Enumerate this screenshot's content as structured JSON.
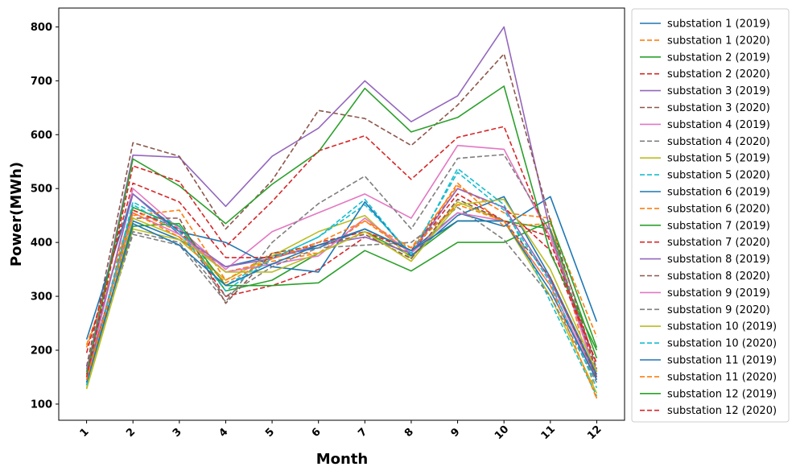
{
  "chart_data": {
    "type": "line",
    "title": "",
    "xlabel": "Month",
    "ylabel": "Power(MWh)",
    "x": [
      1,
      2,
      3,
      4,
      5,
      6,
      7,
      8,
      9,
      10,
      11,
      12
    ],
    "xticklabels": [
      "1",
      "2",
      "3",
      "4",
      "5",
      "6",
      "7",
      "8",
      "9",
      "10",
      "11",
      "12"
    ],
    "yticks": [
      100,
      200,
      300,
      400,
      500,
      600,
      700,
      800
    ],
    "xlim": [
      0.4,
      12.6
    ],
    "ylim": [
      70,
      835
    ],
    "grid": false,
    "legend_position": "outside-right",
    "series": [
      {
        "name": "substation 1 (2019)",
        "color": "#1f77b4",
        "dash": "solid",
        "values": [
          135,
          440,
          405,
          355,
          375,
          390,
          425,
          385,
          455,
          430,
          485,
          253
        ]
      },
      {
        "name": "substation 1 (2020)",
        "color": "#ff7f0e",
        "dash": "dashed",
        "values": [
          205,
          460,
          420,
          345,
          365,
          380,
          420,
          390,
          505,
          455,
          445,
          110
        ]
      },
      {
        "name": "substation 2 (2019)",
        "color": "#2ca02c",
        "dash": "solid",
        "values": [
          140,
          465,
          430,
          310,
          330,
          380,
          420,
          375,
          440,
          440,
          425,
          185
        ]
      },
      {
        "name": "substation 2 (2020)",
        "color": "#d62728",
        "dash": "dashed",
        "values": [
          150,
          460,
          425,
          300,
          320,
          350,
          410,
          380,
          490,
          440,
          410,
          160
        ]
      },
      {
        "name": "substation 3 (2019)",
        "color": "#9467bd",
        "dash": "solid",
        "values": [
          160,
          562,
          558,
          467,
          560,
          612,
          700,
          624,
          672,
          800,
          420,
          150
        ]
      },
      {
        "name": "substation 3 (2020)",
        "color": "#8c564b",
        "dash": "dashed",
        "values": [
          170,
          585,
          560,
          425,
          515,
          645,
          630,
          580,
          655,
          750,
          440,
          165
        ]
      },
      {
        "name": "substation 4 (2019)",
        "color": "#e377c2",
        "dash": "solid",
        "values": [
          150,
          500,
          425,
          350,
          420,
          455,
          490,
          445,
          580,
          573,
          410,
          150
        ]
      },
      {
        "name": "substation 4 (2020)",
        "color": "#7f7f7f",
        "dash": "dashed",
        "values": [
          145,
          415,
          395,
          290,
          400,
          472,
          523,
          425,
          556,
          563,
          420,
          165
        ]
      },
      {
        "name": "substation 5 (2019)",
        "color": "#bcbd22",
        "dash": "solid",
        "values": [
          128,
          425,
          405,
          330,
          375,
          420,
          450,
          370,
          475,
          440,
          300,
          120
        ]
      },
      {
        "name": "substation 5 (2020)",
        "color": "#17becf",
        "dash": "dashed",
        "values": [
          140,
          475,
          430,
          320,
          370,
          410,
          480,
          375,
          537,
          470,
          290,
          115
        ]
      },
      {
        "name": "substation 6 (2019)",
        "color": "#1f77b4",
        "dash": "solid",
        "values": [
          220,
          490,
          420,
          400,
          355,
          345,
          475,
          375,
          450,
          485,
          335,
          155
        ]
      },
      {
        "name": "substation 6 (2020)",
        "color": "#ff7f0e",
        "dash": "dashed",
        "values": [
          210,
          450,
          460,
          330,
          380,
          380,
          440,
          380,
          510,
          430,
          435,
          225
        ]
      },
      {
        "name": "substation 7 (2019)",
        "color": "#2ca02c",
        "dash": "solid",
        "values": [
          145,
          430,
          435,
          320,
          320,
          325,
          385,
          347,
          400,
          400,
          440,
          205
        ]
      },
      {
        "name": "substation 7 (2020)",
        "color": "#d62728",
        "dash": "dashed",
        "values": [
          195,
          510,
          475,
          372,
          372,
          400,
          420,
          385,
          500,
          465,
          385,
          175
        ]
      },
      {
        "name": "substation 8 (2019)",
        "color": "#9467bd",
        "dash": "solid",
        "values": [
          165,
          490,
          415,
          355,
          370,
          395,
          410,
          380,
          500,
          465,
          330,
          150
        ]
      },
      {
        "name": "substation 8 (2020)",
        "color": "#8c564b",
        "dash": "dashed",
        "values": [
          155,
          445,
          445,
          287,
          380,
          395,
          415,
          370,
          480,
          440,
          335,
          150
        ]
      },
      {
        "name": "substation 9 (2019)",
        "color": "#e377c2",
        "dash": "solid",
        "values": [
          145,
          455,
          415,
          345,
          360,
          375,
          445,
          380,
          455,
          440,
          320,
          145
        ]
      },
      {
        "name": "substation 9 (2020)",
        "color": "#7f7f7f",
        "dash": "dashed",
        "values": [
          160,
          420,
          400,
          300,
          355,
          390,
          395,
          400,
          465,
          405,
          300,
          140
        ]
      },
      {
        "name": "substation 10 (2019)",
        "color": "#bcbd22",
        "dash": "solid",
        "values": [
          130,
          445,
          410,
          345,
          345,
          380,
          420,
          365,
          470,
          480,
          350,
          160
        ]
      },
      {
        "name": "substation 10 (2020)",
        "color": "#17becf",
        "dash": "dashed",
        "values": [
          135,
          470,
          420,
          310,
          370,
          410,
          470,
          380,
          530,
          460,
          325,
          130
        ]
      },
      {
        "name": "substation 11 (2019)",
        "color": "#1f77b4",
        "dash": "solid",
        "values": [
          140,
          435,
          395,
          320,
          360,
          395,
          425,
          385,
          440,
          440,
          310,
          145
        ]
      },
      {
        "name": "substation 11 (2020)",
        "color": "#ff7f0e",
        "dash": "dashed",
        "values": [
          145,
          455,
          410,
          325,
          370,
          400,
          440,
          390,
          470,
          440,
          320,
          110
        ]
      },
      {
        "name": "substation 12 (2019)",
        "color": "#2ca02c",
        "dash": "solid",
        "values": [
          155,
          555,
          505,
          435,
          508,
          568,
          686,
          605,
          632,
          690,
          380,
          200
        ]
      },
      {
        "name": "substation 12 (2020)",
        "color": "#d62728",
        "dash": "dashed",
        "values": [
          150,
          542,
          513,
          392,
          476,
          570,
          598,
          517,
          595,
          615,
          400,
          175
        ]
      }
    ]
  }
}
